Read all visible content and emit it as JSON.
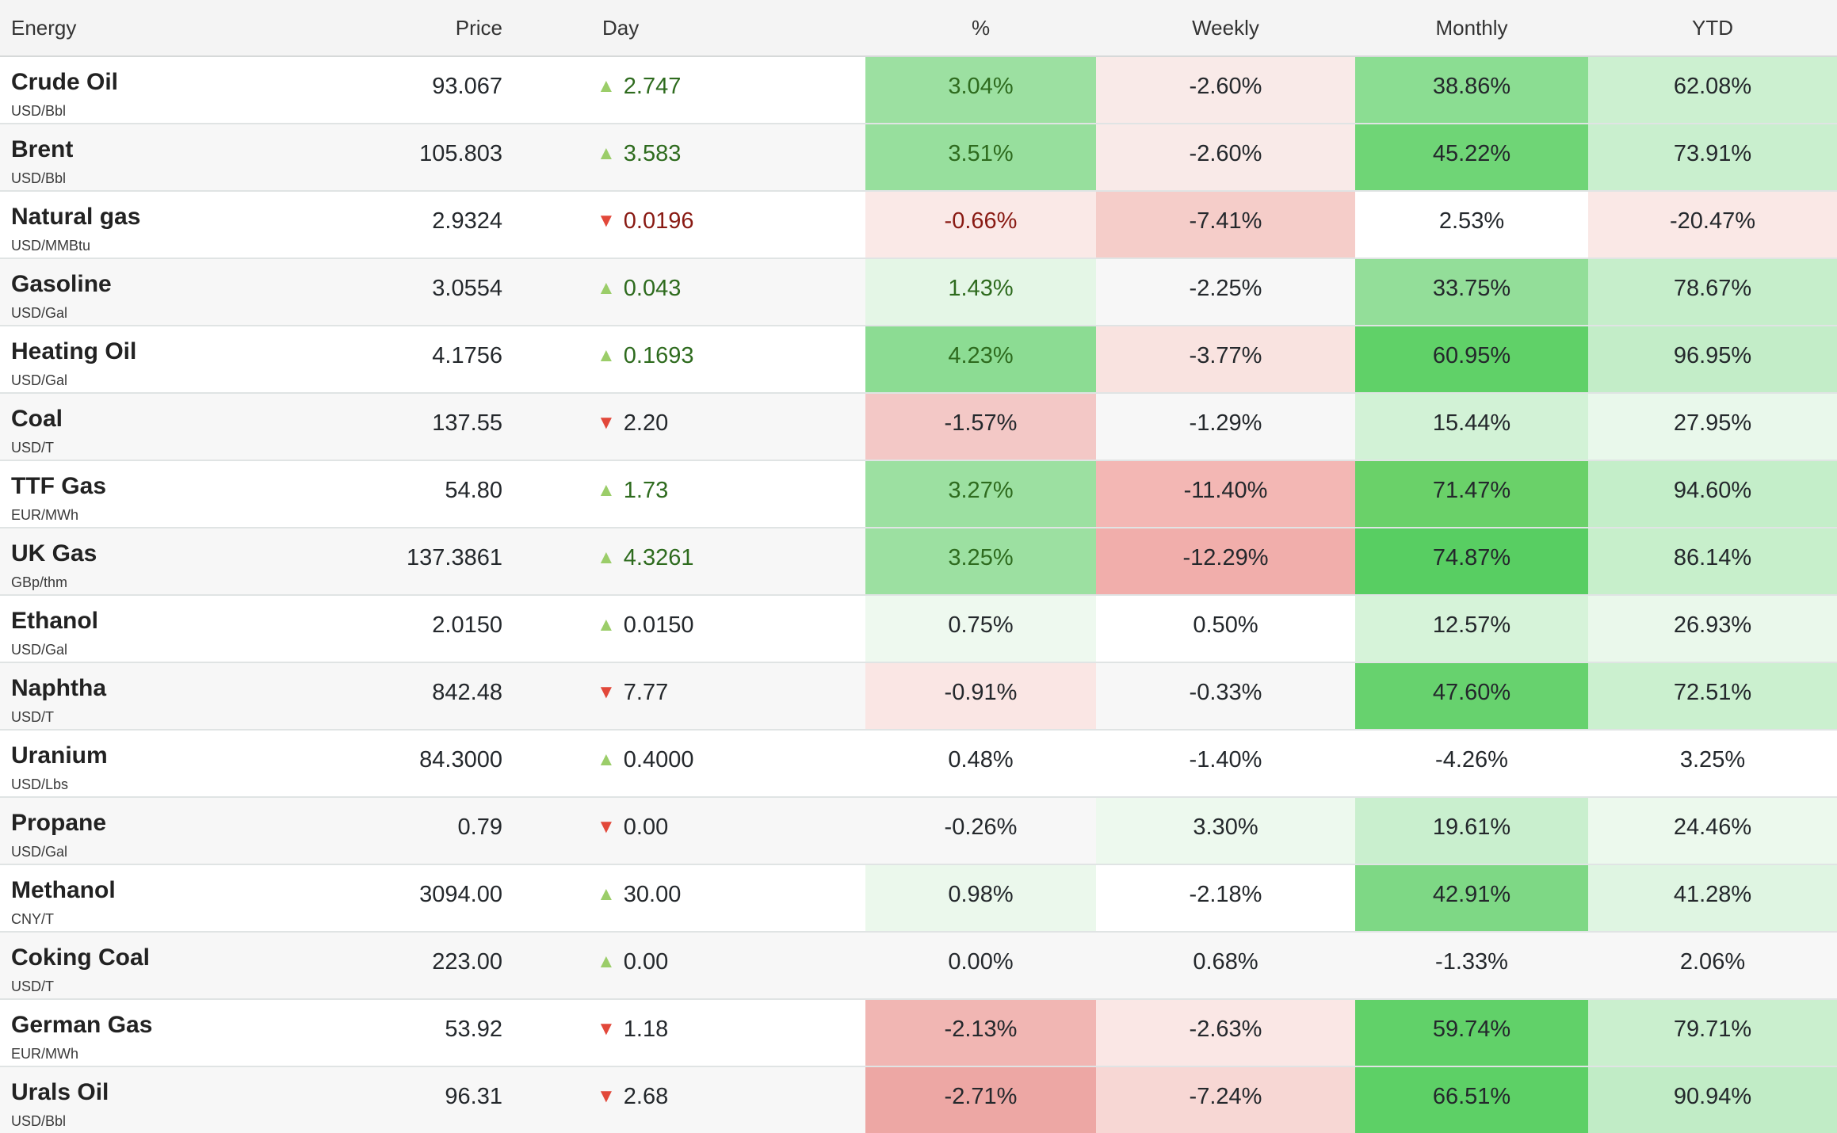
{
  "columns": [
    "Energy",
    "Price",
    "Day",
    "%",
    "Weekly",
    "Monthly",
    "YTD"
  ],
  "colors": {
    "text_green": "#2e6b1e",
    "text_red": "#891a13",
    "text_plain": "#24282c",
    "arrow_up": "#9bcd69",
    "arrow_down": "#e2483a",
    "header_bg": "#f4f4f4",
    "stripe_bg": "#f7f7f7"
  },
  "rows": [
    {
      "name": "Crude Oil",
      "unit": "USD/Bbl",
      "price": "93.067",
      "dir": "up",
      "change": "2.747",
      "tone": "green",
      "pct": {
        "v": "3.04%",
        "bg": "#9ce0a1"
      },
      "weekly": {
        "v": "-2.60%",
        "bg": "#f9eae8"
      },
      "monthly": {
        "v": "38.86%",
        "bg": "#8bdd92"
      },
      "ytd": {
        "v": "62.08%",
        "bg": "#ccf0d0"
      }
    },
    {
      "name": "Brent",
      "unit": "USD/Bbl",
      "price": "105.803",
      "dir": "up",
      "change": "3.583",
      "tone": "green",
      "pct": {
        "v": "3.51%",
        "bg": "#97df9d"
      },
      "weekly": {
        "v": "-2.60%",
        "bg": "#f9eae8"
      },
      "monthly": {
        "v": "45.22%",
        "bg": "#6fd576"
      },
      "ytd": {
        "v": "73.91%",
        "bg": "#c9efce"
      }
    },
    {
      "name": "Natural gas",
      "unit": "USD/MMBtu",
      "price": "2.9324",
      "dir": "down",
      "change": "0.0196",
      "tone": "red",
      "pct": {
        "v": "-0.66%",
        "bg": "#fae9e7"
      },
      "weekly": {
        "v": "-7.41%",
        "bg": "#f5cdc9"
      },
      "monthly": {
        "v": "2.53%",
        "bg": ""
      },
      "ytd": {
        "v": "-20.47%",
        "bg": "#fae8e6"
      }
    },
    {
      "name": "Gasoline",
      "unit": "USD/Gal",
      "price": "3.0554",
      "dir": "up",
      "change": "0.043",
      "tone": "green",
      "pct": {
        "v": "1.43%",
        "bg": "#e4f6e6"
      },
      "weekly": {
        "v": "-2.25%",
        "bg": ""
      },
      "monthly": {
        "v": "33.75%",
        "bg": "#93de99"
      },
      "ytd": {
        "v": "78.67%",
        "bg": "#c6eecb"
      }
    },
    {
      "name": "Heating Oil",
      "unit": "USD/Gal",
      "price": "4.1756",
      "dir": "up",
      "change": "0.1693",
      "tone": "green",
      "pct": {
        "v": "4.23%",
        "bg": "#8cdc93"
      },
      "weekly": {
        "v": "-3.77%",
        "bg": "#f9e3e0"
      },
      "monthly": {
        "v": "60.95%",
        "bg": "#60d168"
      },
      "ytd": {
        "v": "96.95%",
        "bg": "#c3edc8"
      }
    },
    {
      "name": "Coal",
      "unit": "USD/T",
      "price": "137.55",
      "dir": "down",
      "change": "2.20",
      "tone": "plain",
      "pct": {
        "v": "-1.57%",
        "bg": "#f3c8c6"
      },
      "weekly": {
        "v": "-1.29%",
        "bg": ""
      },
      "monthly": {
        "v": "15.44%",
        "bg": "#d2f2d6"
      },
      "ytd": {
        "v": "27.95%",
        "bg": "#e9f8eb"
      }
    },
    {
      "name": "TTF Gas",
      "unit": "EUR/MWh",
      "price": "54.80",
      "dir": "up",
      "change": "1.73",
      "tone": "green",
      "pct": {
        "v": "3.27%",
        "bg": "#9ce0a1"
      },
      "weekly": {
        "v": "-11.40%",
        "bg": "#f3b7b4"
      },
      "monthly": {
        "v": "71.47%",
        "bg": "#6ad169"
      },
      "ytd": {
        "v": "94.60%",
        "bg": "#c4eec9"
      }
    },
    {
      "name": "UK Gas",
      "unit": "GBp/thm",
      "price": "137.3861",
      "dir": "up",
      "change": "4.3261",
      "tone": "green",
      "pct": {
        "v": "3.25%",
        "bg": "#9ce0a1"
      },
      "weekly": {
        "v": "-12.29%",
        "bg": "#f1aeab"
      },
      "monthly": {
        "v": "74.87%",
        "bg": "#58ce62"
      },
      "ytd": {
        "v": "86.14%",
        "bg": "#c7efcb"
      }
    },
    {
      "name": "Ethanol",
      "unit": "USD/Gal",
      "price": "2.0150",
      "dir": "up",
      "change": "0.0150",
      "tone": "plain",
      "pct": {
        "v": "0.75%",
        "bg": "#eef9ef"
      },
      "weekly": {
        "v": "0.50%",
        "bg": ""
      },
      "monthly": {
        "v": "12.57%",
        "bg": "#d6f3d9"
      },
      "ytd": {
        "v": "26.93%",
        "bg": "#eaf8eb"
      }
    },
    {
      "name": "Naphtha",
      "unit": "USD/T",
      "price": "842.48",
      "dir": "down",
      "change": "7.77",
      "tone": "plain",
      "pct": {
        "v": "-0.91%",
        "bg": "#fae6e4"
      },
      "weekly": {
        "v": "-0.33%",
        "bg": ""
      },
      "monthly": {
        "v": "47.60%",
        "bg": "#67d26e"
      },
      "ytd": {
        "v": "72.51%",
        "bg": "#cbf0cf"
      }
    },
    {
      "name": "Uranium",
      "unit": "USD/Lbs",
      "price": "84.3000",
      "dir": "up",
      "change": "0.4000",
      "tone": "plain",
      "pct": {
        "v": "0.48%",
        "bg": ""
      },
      "weekly": {
        "v": "-1.40%",
        "bg": ""
      },
      "monthly": {
        "v": "-4.26%",
        "bg": ""
      },
      "ytd": {
        "v": "3.25%",
        "bg": ""
      }
    },
    {
      "name": "Propane",
      "unit": "USD/Gal",
      "price": "0.79",
      "dir": "down",
      "change": "0.00",
      "tone": "plain",
      "pct": {
        "v": "-0.26%",
        "bg": ""
      },
      "weekly": {
        "v": "3.30%",
        "bg": "#edf9ee"
      },
      "monthly": {
        "v": "19.61%",
        "bg": "#c9efce"
      },
      "ytd": {
        "v": "24.46%",
        "bg": "#ecf9ed"
      }
    },
    {
      "name": "Methanol",
      "unit": "CNY/T",
      "price": "3094.00",
      "dir": "up",
      "change": "30.00",
      "tone": "plain",
      "pct": {
        "v": "0.98%",
        "bg": "#ebf8ec"
      },
      "weekly": {
        "v": "-2.18%",
        "bg": ""
      },
      "monthly": {
        "v": "42.91%",
        "bg": "#7ed885"
      },
      "ytd": {
        "v": "41.28%",
        "bg": "#dff5e2"
      }
    },
    {
      "name": "Coking Coal",
      "unit": "USD/T",
      "price": "223.00",
      "dir": "up",
      "change": "0.00",
      "tone": "plain",
      "pct": {
        "v": "0.00%",
        "bg": ""
      },
      "weekly": {
        "v": "0.68%",
        "bg": ""
      },
      "monthly": {
        "v": "-1.33%",
        "bg": ""
      },
      "ytd": {
        "v": "2.06%",
        "bg": ""
      }
    },
    {
      "name": "German Gas",
      "unit": "EUR/MWh",
      "price": "53.92",
      "dir": "down",
      "change": "1.18",
      "tone": "plain",
      "pct": {
        "v": "-2.13%",
        "bg": "#f1b6b3"
      },
      "weekly": {
        "v": "-2.63%",
        "bg": "#fae7e5"
      },
      "monthly": {
        "v": "59.74%",
        "bg": "#61d169"
      },
      "ytd": {
        "v": "79.71%",
        "bg": "#caefce"
      }
    },
    {
      "name": "Urals Oil",
      "unit": "USD/Bbl",
      "price": "96.31",
      "dir": "down",
      "change": "2.68",
      "tone": "plain",
      "pct": {
        "v": "-2.71%",
        "bg": "#eda7a4"
      },
      "weekly": {
        "v": "-7.24%",
        "bg": "#f7d7d4"
      },
      "monthly": {
        "v": "66.51%",
        "bg": "#5dd066"
      },
      "ytd": {
        "v": "90.94%",
        "bg": "#c1ecc6"
      }
    }
  ]
}
